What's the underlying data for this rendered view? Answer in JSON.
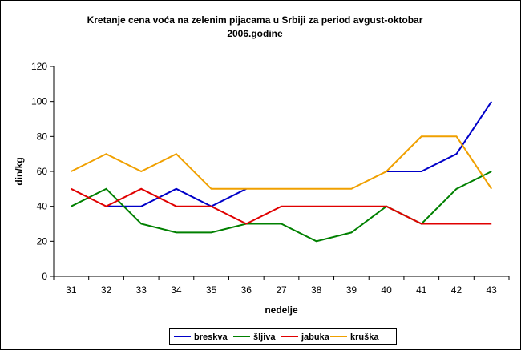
{
  "chart_data": {
    "type": "line",
    "title_lines": [
      "Kretanje cena voća na zelenim pijacama u Srbiji za period avgust-oktobar",
      "2006.godine"
    ],
    "xlabel": "nedelje",
    "ylabel": "din/kg",
    "categories": [
      "31",
      "32",
      "33",
      "34",
      "35",
      "36",
      "27",
      "38",
      "39",
      "40",
      "41",
      "42",
      "43"
    ],
    "ylim": [
      0,
      120
    ],
    "yticks": [
      0,
      20,
      40,
      60,
      80,
      100,
      120
    ],
    "grid": false,
    "legend_position": "bottom",
    "series": [
      {
        "name": "breskva",
        "color": "#0000c8",
        "values": [
          null,
          40,
          40,
          50,
          40,
          50,
          null,
          null,
          null,
          60,
          60,
          70,
          100
        ]
      },
      {
        "name": "šljiva",
        "color": "#008000",
        "values": [
          40,
          50,
          30,
          25,
          25,
          30,
          30,
          20,
          25,
          40,
          30,
          50,
          60
        ]
      },
      {
        "name": "jabuka",
        "color": "#e00000",
        "values": [
          50,
          40,
          50,
          40,
          40,
          30,
          40,
          40,
          40,
          40,
          30,
          30,
          30
        ]
      },
      {
        "name": "kruška",
        "color": "#f0a000",
        "values": [
          60,
          70,
          60,
          70,
          50,
          50,
          50,
          50,
          50,
          60,
          80,
          80,
          50
        ]
      }
    ]
  }
}
